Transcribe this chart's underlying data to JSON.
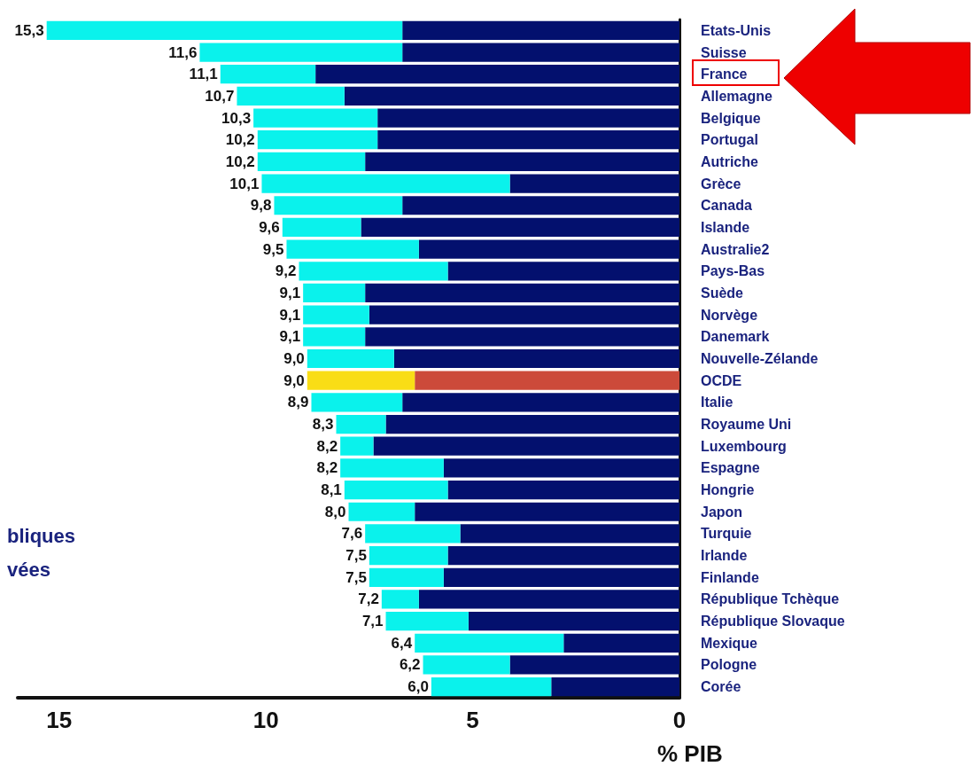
{
  "chart_data": {
    "type": "bar",
    "orientation": "horizontal",
    "stacked": true,
    "xlabel": "% PIB",
    "categories": [
      "Etats-Unis",
      "Suisse",
      "France",
      "Allemagne",
      "Belgique",
      "Portugal",
      "Autriche",
      "Grèce",
      "Canada",
      "Islande",
      "Australie2",
      "Pays-Bas",
      "Suède",
      "Norvège",
      "Danemark",
      "Nouvelle-Zélande",
      "OCDE",
      "Italie",
      "Royaume Uni",
      "Luxembourg",
      "Espagne",
      "Hongrie",
      "Japon",
      "Turquie",
      "Irlande",
      "Finlande",
      "République Tchèque",
      "République Slovaque",
      "Mexique",
      "Pologne",
      "Corée"
    ],
    "series": [
      {
        "colors": [
          "#03106e",
          "#03106e",
          "#03106e",
          "#03106e",
          "#03106e",
          "#03106e",
          "#03106e",
          "#03106e",
          "#03106e",
          "#03106e",
          "#03106e",
          "#03106e",
          "#03106e",
          "#03106e",
          "#03106e",
          "#03106e",
          "#cc4a3a",
          "#03106e",
          "#03106e",
          "#03106e",
          "#03106e",
          "#03106e",
          "#03106e",
          "#03106e",
          "#03106e",
          "#03106e",
          "#03106e",
          "#03106e",
          "#03106e",
          "#03106e",
          "#03106e"
        ],
        "values": [
          6.7,
          6.7,
          8.8,
          8.1,
          7.3,
          7.3,
          7.6,
          4.1,
          6.7,
          7.7,
          6.3,
          5.6,
          7.6,
          7.5,
          7.6,
          6.9,
          6.4,
          6.7,
          7.1,
          7.4,
          5.7,
          5.6,
          6.4,
          5.3,
          5.6,
          5.7,
          6.3,
          5.1,
          2.8,
          4.1,
          3.1
        ]
      },
      {
        "colors": [
          "#0af2ec",
          "#0af2ec",
          "#0af2ec",
          "#0af2ec",
          "#0af2ec",
          "#0af2ec",
          "#0af2ec",
          "#0af2ec",
          "#0af2ec",
          "#0af2ec",
          "#0af2ec",
          "#0af2ec",
          "#0af2ec",
          "#0af2ec",
          "#0af2ec",
          "#0af2ec",
          "#f9dd16",
          "#0af2ec",
          "#0af2ec",
          "#0af2ec",
          "#0af2ec",
          "#0af2ec",
          "#0af2ec",
          "#0af2ec",
          "#0af2ec",
          "#0af2ec",
          "#0af2ec",
          "#0af2ec",
          "#0af2ec",
          "#0af2ec",
          "#0af2ec"
        ],
        "values": [
          8.6,
          4.9,
          2.3,
          2.6,
          3.0,
          2.9,
          2.6,
          6.0,
          3.1,
          1.9,
          3.2,
          3.6,
          1.5,
          1.6,
          1.5,
          2.1,
          2.6,
          2.2,
          1.2,
          0.8,
          2.5,
          2.5,
          1.6,
          2.3,
          1.9,
          1.8,
          0.9,
          2.0,
          3.6,
          2.1,
          2.9
        ]
      }
    ],
    "totals": [
      "15,3",
      "11,6",
      "11,1",
      "10,7",
      "10,3",
      "10,2",
      "10,2",
      "10,1",
      "9,8",
      "9,6",
      "9,5",
      "9,2",
      "9,1",
      "9,1",
      "9,1",
      "9,0",
      "9,0",
      "8,9",
      "8,3",
      "8,2",
      "8,2",
      "8,1",
      "8,0",
      "7,6",
      "7,5",
      "7,5",
      "7,2",
      "7,1",
      "6,4",
      "6,2",
      "6,0"
    ],
    "xlim": [
      16,
      0
    ],
    "xticks": [
      0,
      5,
      10,
      15
    ],
    "grid": false,
    "annotations": [
      "bliques",
      "vées"
    ]
  }
}
